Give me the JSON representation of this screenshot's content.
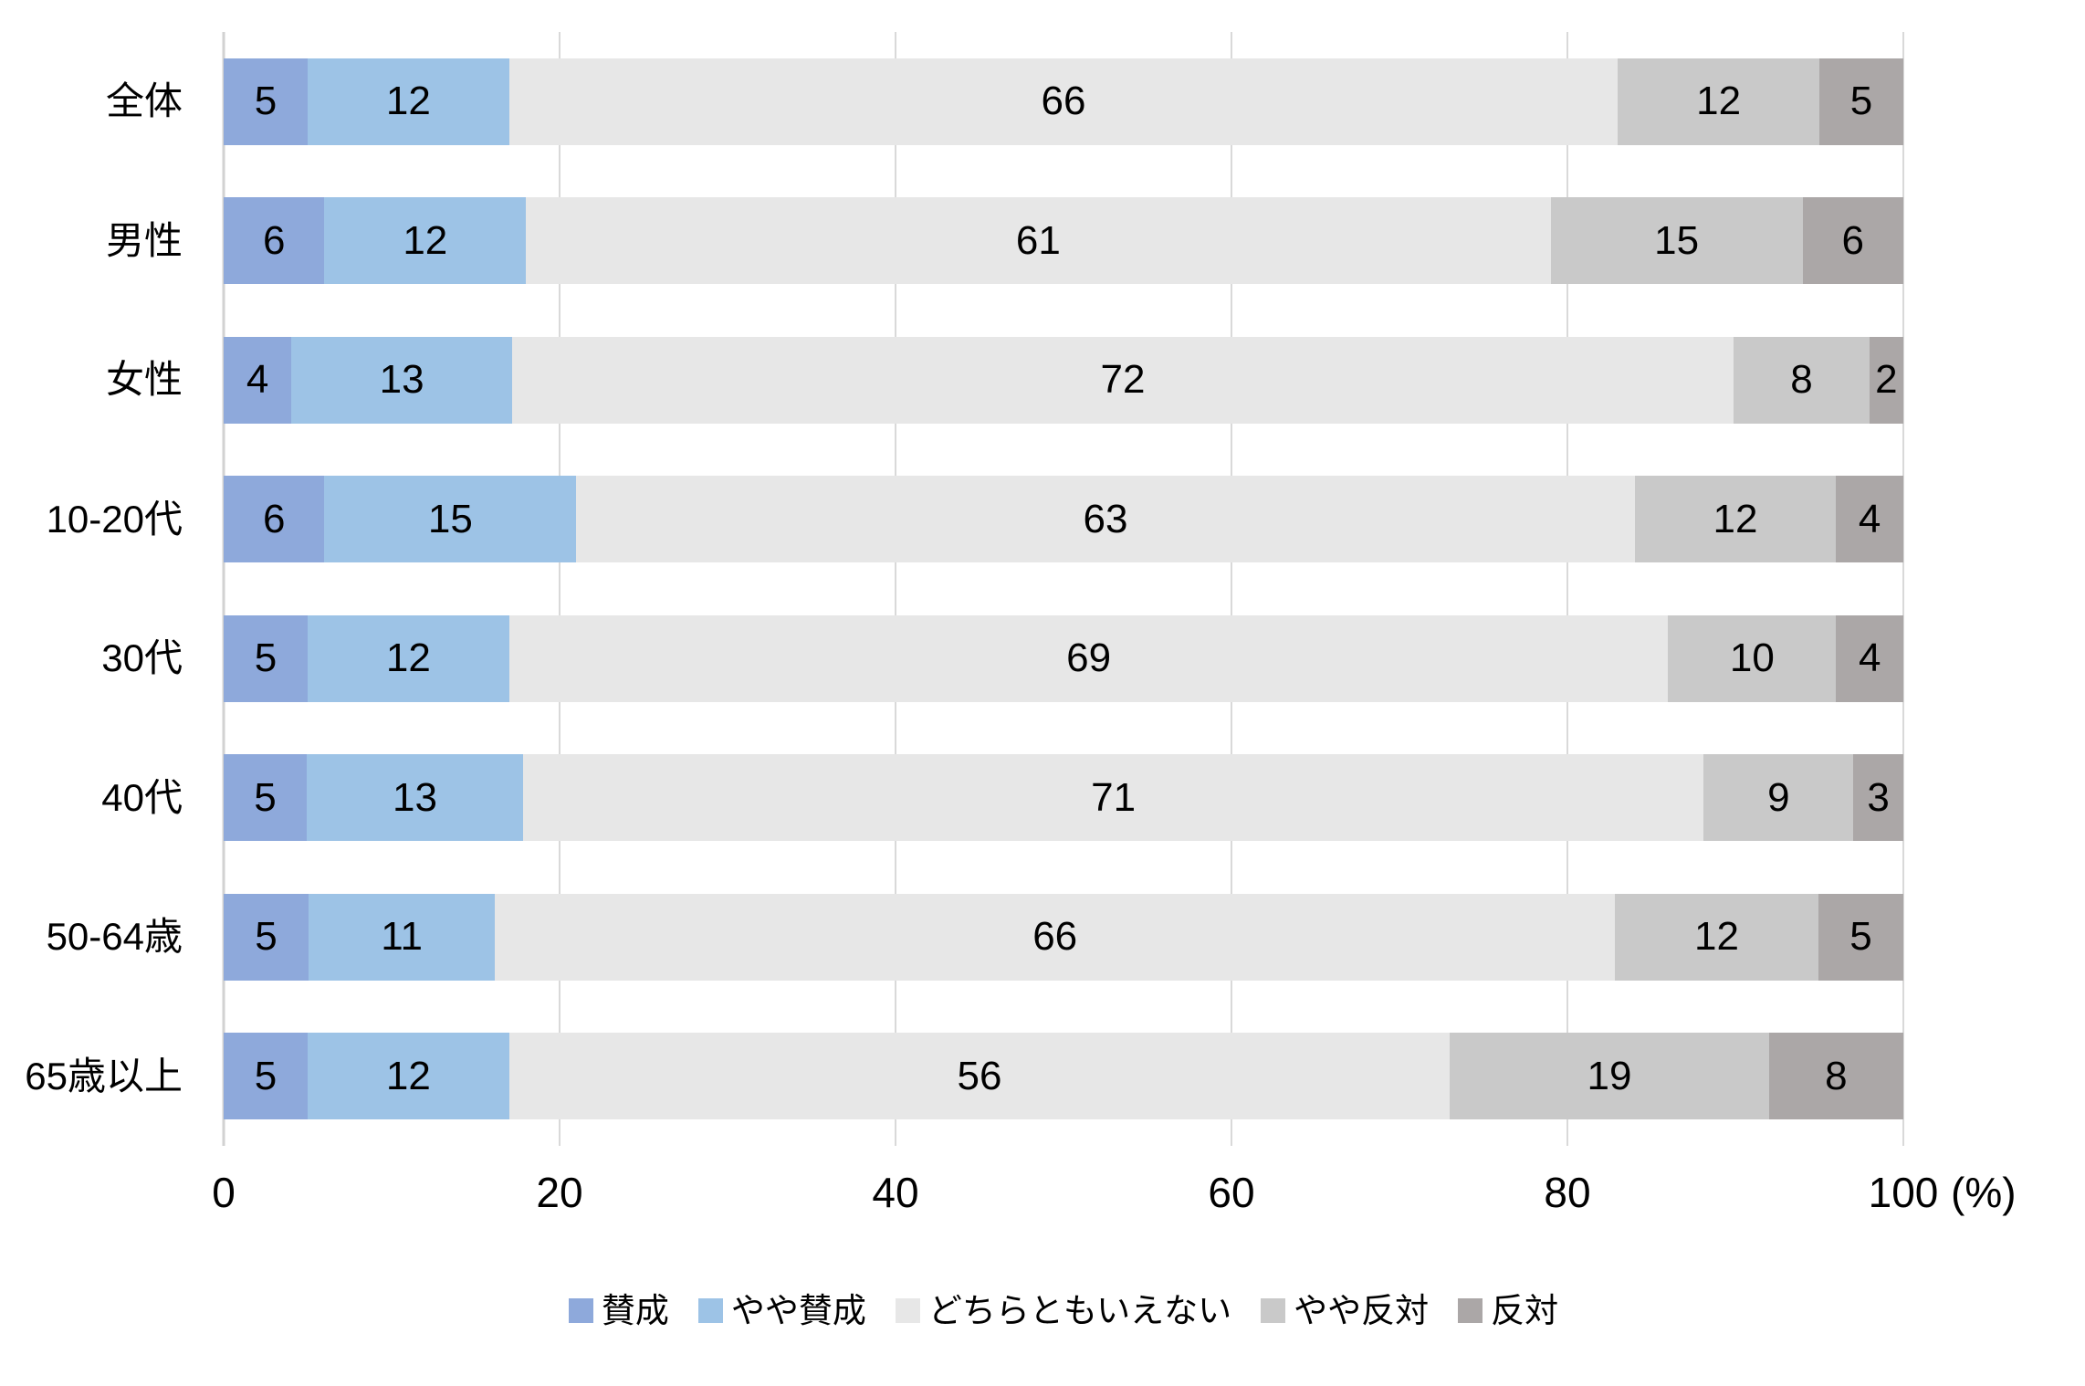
{
  "chart_data": {
    "type": "bar",
    "variant": "stacked-100-horizontal",
    "title": "",
    "xlabel": "",
    "ylabel": "",
    "unit_label": "(%)",
    "xlim": [
      0,
      100
    ],
    "x_ticks": [
      "0",
      "20",
      "40",
      "60",
      "80",
      "100"
    ],
    "grid": true,
    "legend_position": "bottom-center",
    "categories": [
      "全体",
      "男性",
      "女性",
      "10-20代",
      "30代",
      "40代",
      "50-64歳",
      "65歳以上"
    ],
    "series": [
      {
        "name": "賛成",
        "color": "#8ea9db",
        "values": [
          5,
          6,
          4,
          6,
          5,
          5,
          5,
          5
        ]
      },
      {
        "name": "やや賛成",
        "color": "#9dc3e6",
        "values": [
          12,
          12,
          13,
          15,
          12,
          13,
          11,
          12
        ]
      },
      {
        "name": "どちらともいえない",
        "color": "#e7e7e7",
        "values": [
          66,
          61,
          72,
          63,
          69,
          71,
          66,
          56
        ]
      },
      {
        "name": "やや反対",
        "color": "#c9c9c9",
        "values": [
          12,
          15,
          8,
          12,
          10,
          9,
          12,
          19
        ]
      },
      {
        "name": "反対",
        "color": "#aba7a7",
        "values": [
          5,
          6,
          2,
          4,
          4,
          3,
          5,
          8
        ]
      }
    ]
  },
  "style": {
    "gridline_color": "#d9d9d9",
    "axis_line_color": "#d2d2d2",
    "text_color": "#000000",
    "background_color": "#ffffff"
  }
}
